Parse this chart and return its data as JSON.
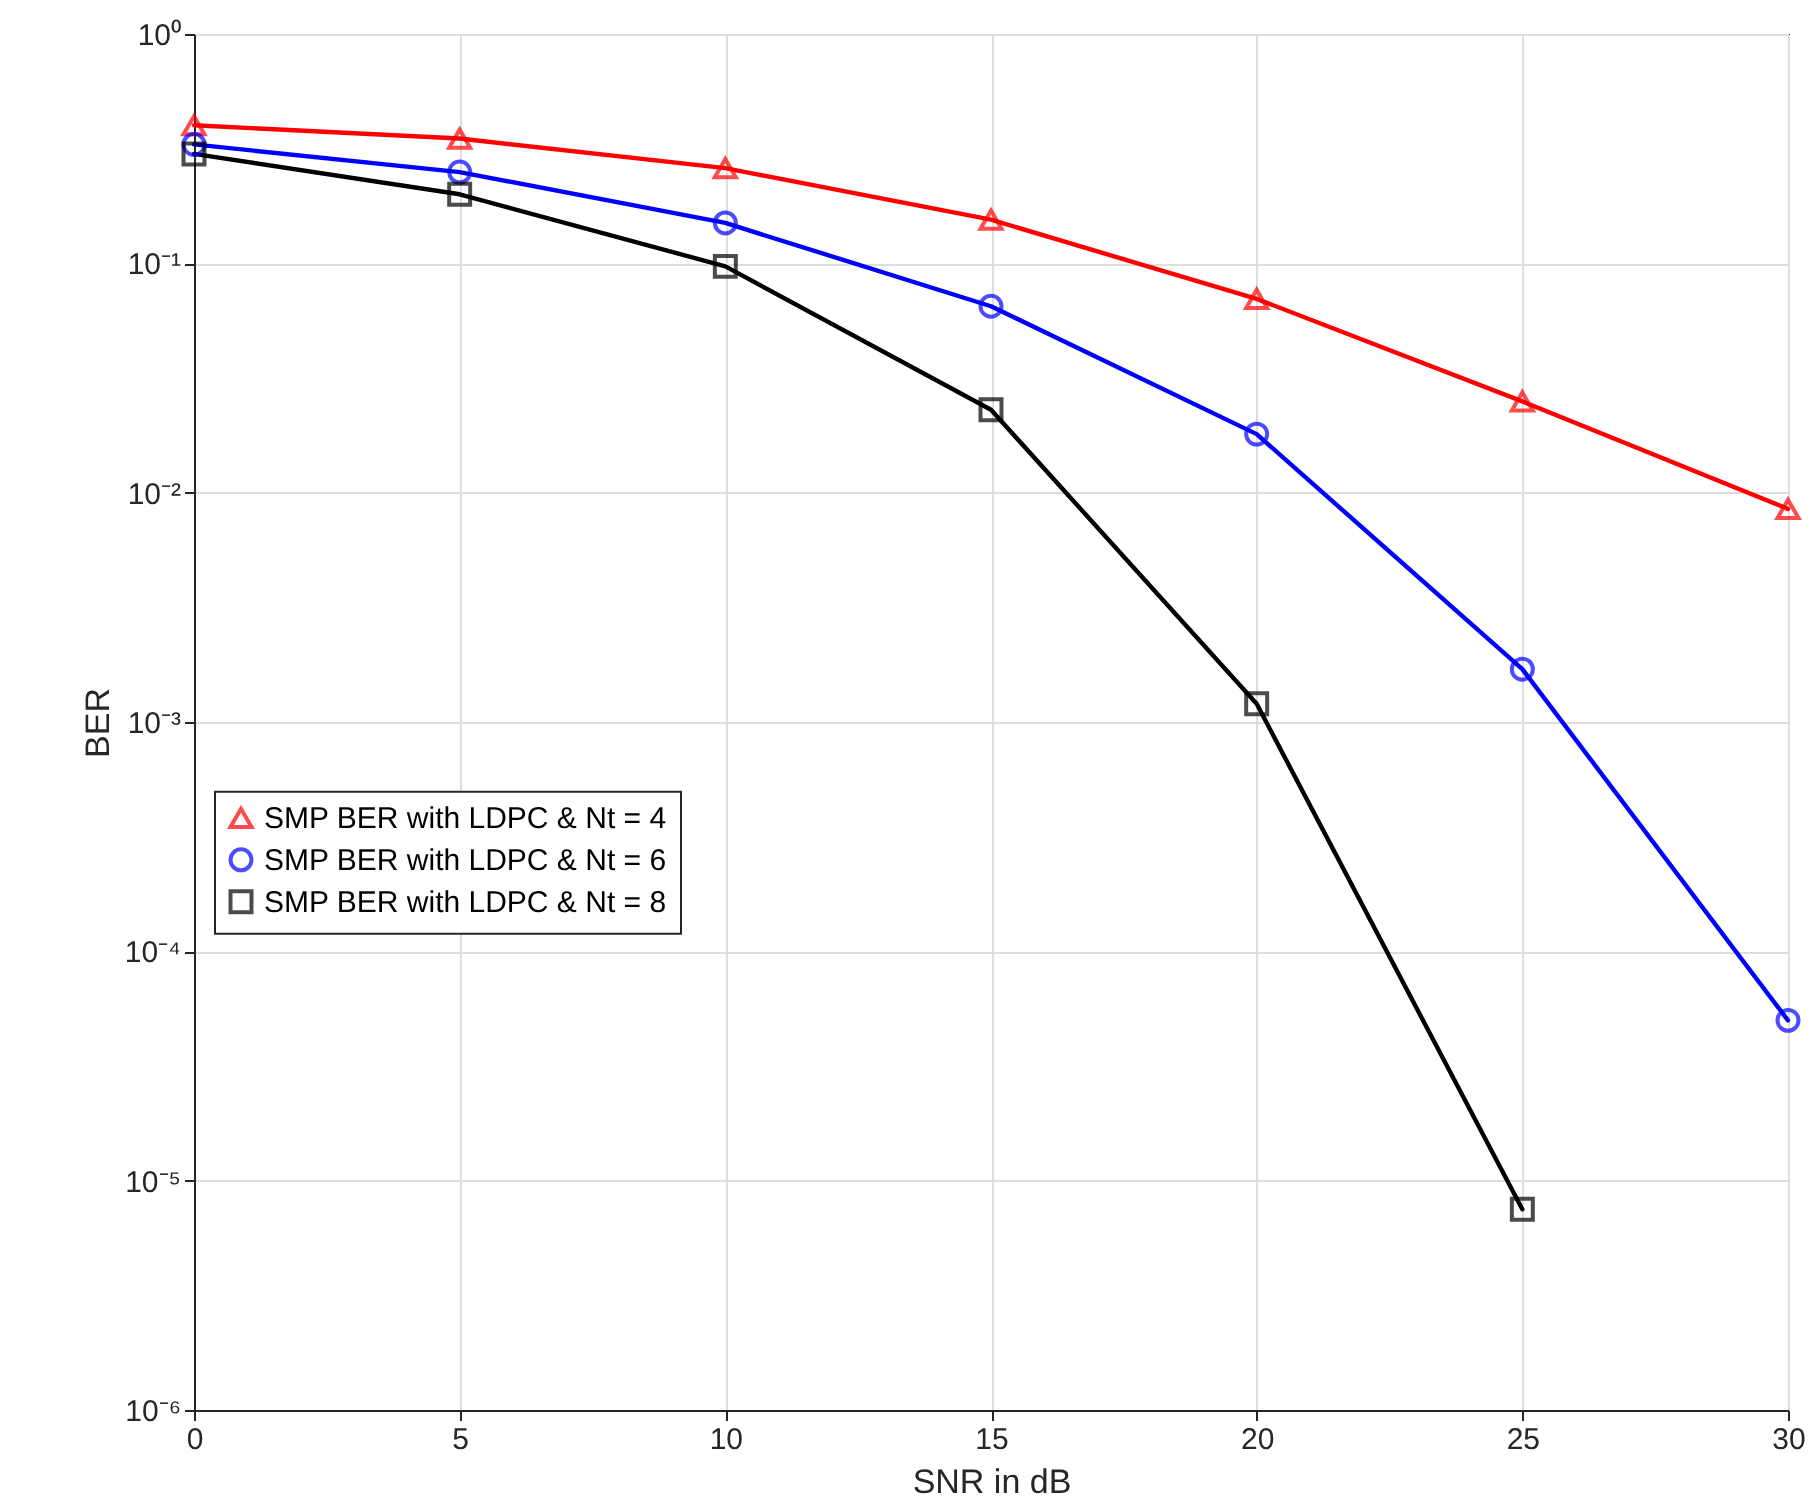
{
  "chart_data": {
    "type": "line",
    "xlabel": "SNR in dB",
    "ylabel": "BER",
    "x": [
      0,
      5,
      10,
      15,
      20,
      25,
      30
    ],
    "series": [
      {
        "name": "SMP BER with LDPC & Nt = 4",
        "color": "#ff0000",
        "marker": "triangle",
        "values": [
          0.4,
          0.35,
          0.26,
          0.155,
          0.07,
          0.025,
          0.0085
        ]
      },
      {
        "name": "SMP BER with LDPC & Nt = 6",
        "color": "#0000ff",
        "marker": "circle",
        "values": [
          0.33,
          0.25,
          0.15,
          0.065,
          0.018,
          0.0017,
          5e-05
        ]
      },
      {
        "name": "SMP BER with LDPC & Nt = 8",
        "color": "#000000",
        "marker": "square",
        "values": [
          0.3,
          0.2,
          0.097,
          0.023,
          0.0012,
          7.5e-06,
          null
        ]
      }
    ],
    "log": "y",
    "xlim": [
      0,
      30
    ],
    "xticks": [
      0,
      5,
      10,
      15,
      20,
      25,
      30
    ],
    "ylim": [
      1e-06,
      1
    ],
    "yticks": [
      {
        "value": 1e-06,
        "label": "10⁻⁶"
      },
      {
        "value": 1e-05,
        "label": "10⁻⁵"
      },
      {
        "value": 0.0001,
        "label": "10⁻⁴"
      },
      {
        "value": 0.001,
        "label": "10⁻³"
      },
      {
        "value": 0.01,
        "label": "10⁻²"
      },
      {
        "value": 0.1,
        "label": "10⁻¹"
      },
      {
        "value": 1,
        "label": "10⁰"
      }
    ],
    "grid": true,
    "legend": "left",
    "line_style": "solid"
  }
}
